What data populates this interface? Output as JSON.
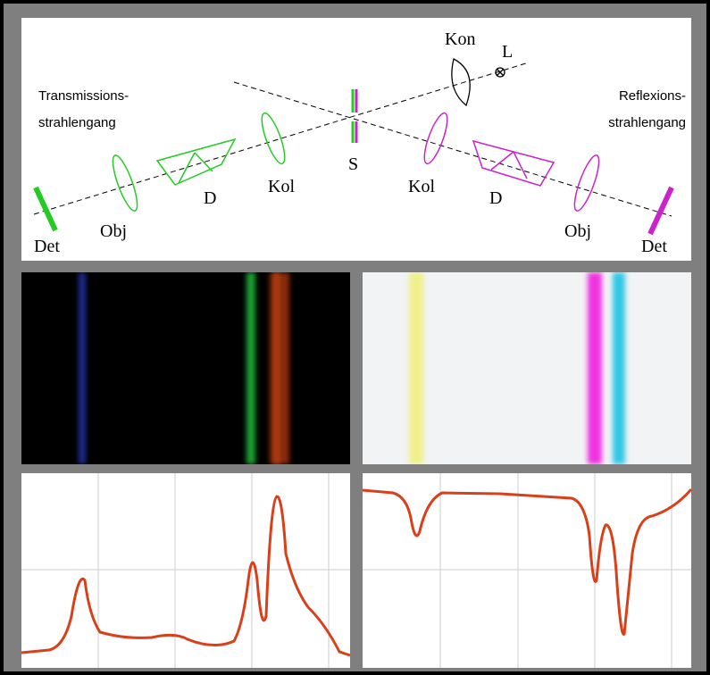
{
  "diagram": {
    "left_path_label": [
      "Transmissions-",
      "strahlengang"
    ],
    "right_path_label": [
      "Reflexions-",
      "strahlengang"
    ],
    "labels": [
      "Kon",
      "L",
      "S",
      "Kol",
      "D",
      "Obj",
      "Det",
      "Kol",
      "D",
      "Obj",
      "Det"
    ]
  }
}
